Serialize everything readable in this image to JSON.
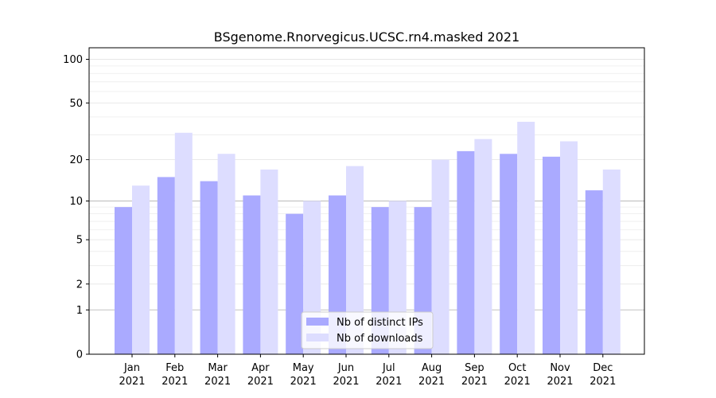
{
  "chart_data": {
    "type": "bar",
    "title": "BSgenome.Rnorvegicus.UCSC.rn4.masked 2021",
    "xlabel": "",
    "ylabel": "",
    "y_scale": "log(1+y)",
    "ylim": [
      0,
      120
    ],
    "yticks": [
      0,
      1,
      2,
      5,
      10,
      20,
      50,
      100
    ],
    "categories": [
      [
        "Jan",
        "2021"
      ],
      [
        "Feb",
        "2021"
      ],
      [
        "Mar",
        "2021"
      ],
      [
        "Apr",
        "2021"
      ],
      [
        "May",
        "2021"
      ],
      [
        "Jun",
        "2021"
      ],
      [
        "Jul",
        "2021"
      ],
      [
        "Aug",
        "2021"
      ],
      [
        "Sep",
        "2021"
      ],
      [
        "Oct",
        "2021"
      ],
      [
        "Nov",
        "2021"
      ],
      [
        "Dec",
        "2021"
      ]
    ],
    "series": [
      {
        "name": "Nb of distinct IPs",
        "color": "#aaaaff",
        "values": [
          9,
          15,
          14,
          11,
          8,
          11,
          9,
          9,
          23,
          22,
          21,
          12
        ]
      },
      {
        "name": "Nb of downloads",
        "color": "#ddddff",
        "values": [
          13,
          31,
          22,
          17,
          10,
          18,
          10,
          20,
          28,
          37,
          27,
          17
        ]
      }
    ],
    "legend_position": "bottom-center",
    "grid": true
  }
}
